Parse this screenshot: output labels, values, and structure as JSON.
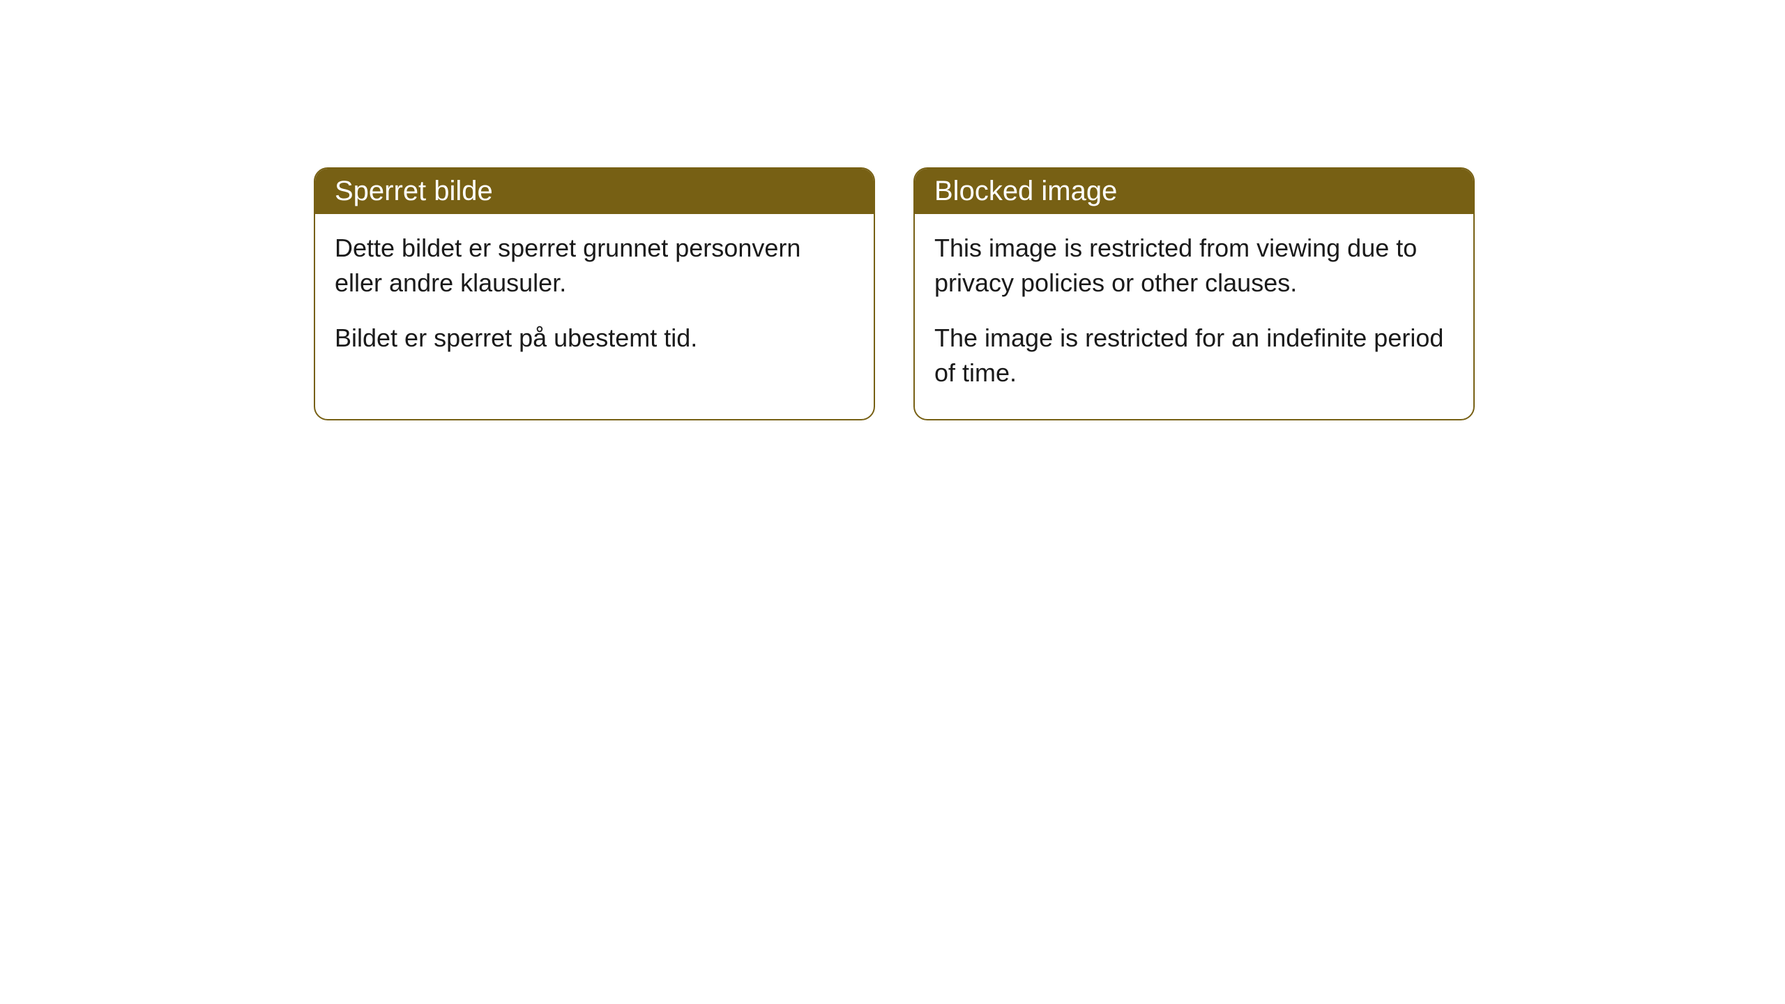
{
  "cards": [
    {
      "title": "Sperret bilde",
      "paragraph1": "Dette bildet er sperret grunnet personvern eller andre klausuler.",
      "paragraph2": "Bildet er sperret på ubestemt tid."
    },
    {
      "title": "Blocked image",
      "paragraph1": "This image is restricted from viewing due to privacy policies or other clauses.",
      "paragraph2": "The image is restricted for an indefinite period of time."
    }
  ],
  "styling": {
    "header_background": "#776014",
    "header_text_color": "#ffffff",
    "border_color": "#776014",
    "body_background": "#ffffff",
    "body_text_color": "#1a1a1a",
    "border_radius": 20,
    "title_fontsize": 40,
    "body_fontsize": 36
  }
}
